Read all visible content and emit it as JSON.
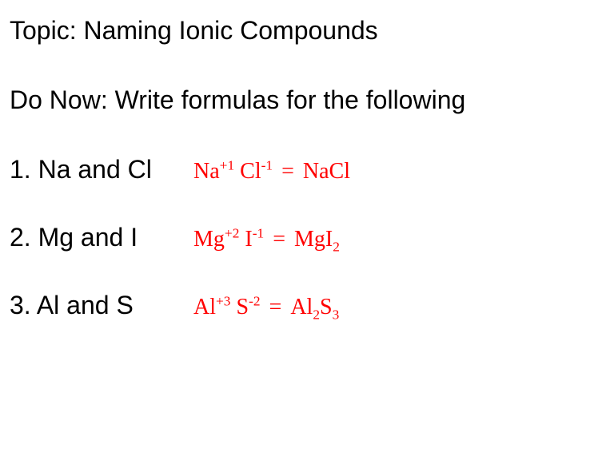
{
  "heading": "Topic: Naming Ionic Compounds",
  "subheading": "Do Now: Write formulas for the following",
  "text_color": "#000000",
  "answer_color": "#ff0000",
  "background_color": "#ffffff",
  "heading_fontsize": 32,
  "answer_fontsize": 28,
  "answer_font": "Times New Roman",
  "prompt_font": "Arial",
  "items": [
    {
      "prompt_number": "1.",
      "prompt_text": "Na   and Cl",
      "cation": "Na",
      "cation_charge": "+1",
      "anion": "Cl",
      "anion_charge": "-1",
      "result_parts": [
        {
          "t": "NaCl"
        }
      ]
    },
    {
      "prompt_number": "2.",
      "prompt_text": "Mg and I",
      "cation": "Mg",
      "cation_charge": "+2",
      "anion": "I",
      "anion_charge": "-1",
      "result_parts": [
        {
          "t": "MgI"
        },
        {
          "sub": "2"
        }
      ]
    },
    {
      "prompt_number": "3.",
      "prompt_text": "Al and S",
      "cation": "Al",
      "cation_charge": "+3",
      "anion": "S",
      "anion_charge": "-2",
      "result_parts": [
        {
          "t": "Al"
        },
        {
          "sub": "2"
        },
        {
          "t": "S"
        },
        {
          "sub": "3"
        }
      ]
    }
  ]
}
